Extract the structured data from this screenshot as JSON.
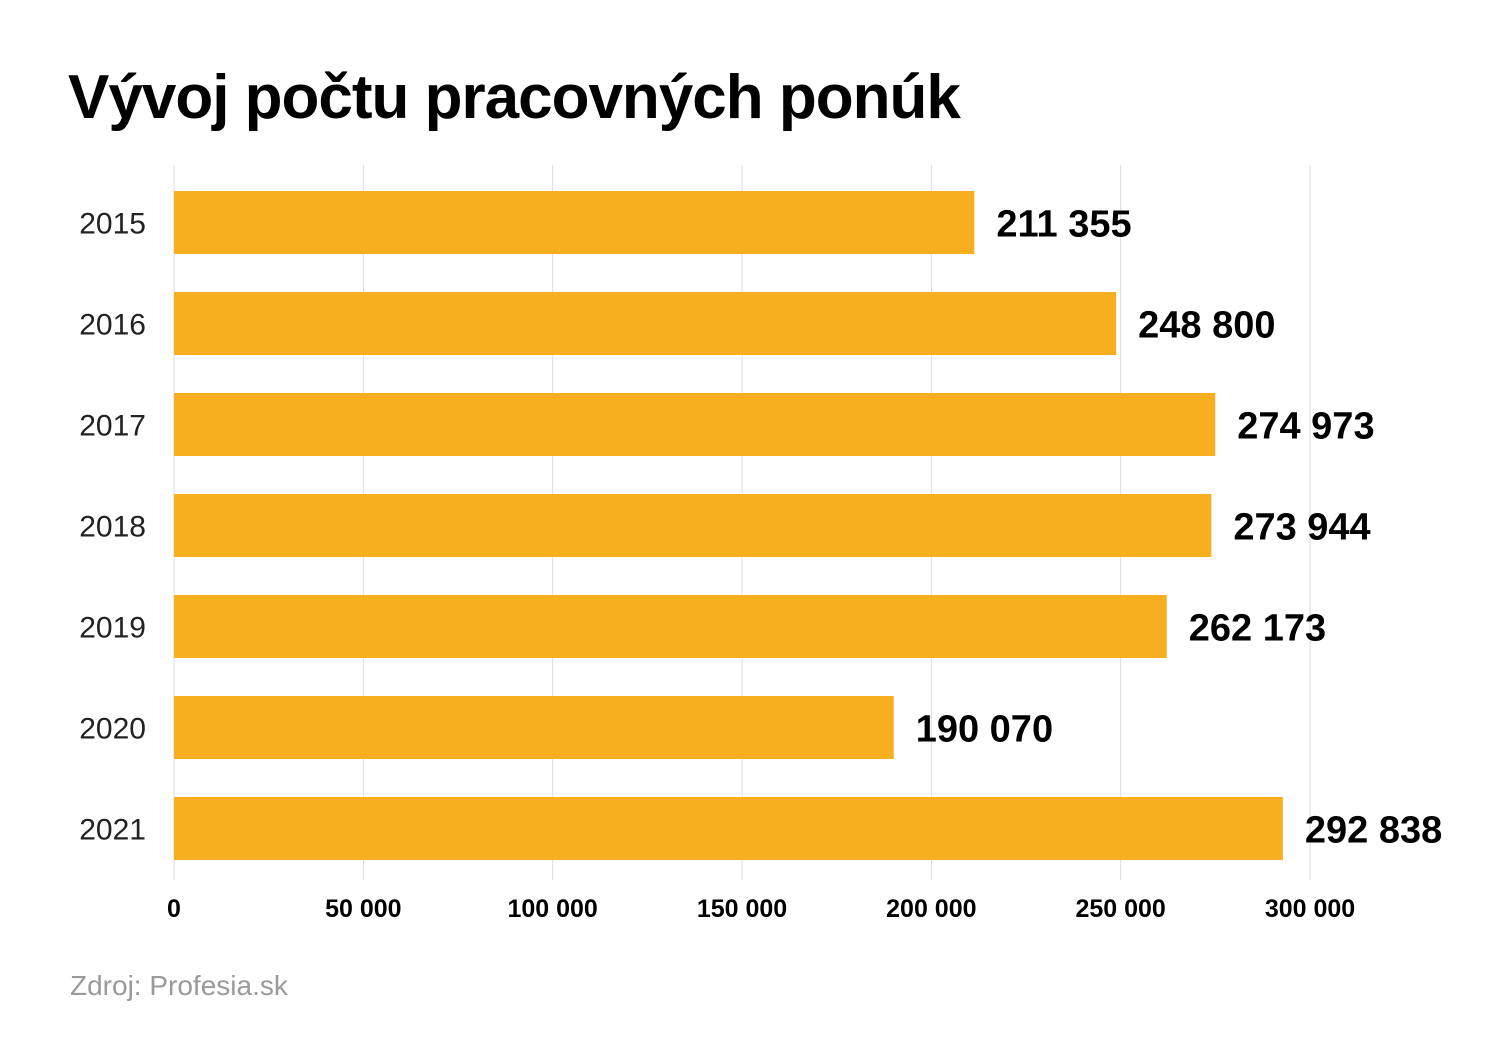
{
  "chart_data": {
    "type": "bar",
    "orientation": "horizontal",
    "title": "Vývoj počtu pracovných ponúk",
    "categories": [
      "2015",
      "2016",
      "2017",
      "2018",
      "2019",
      "2020",
      "2021"
    ],
    "values": [
      211355,
      248800,
      274973,
      273944,
      262173,
      190070,
      292838
    ],
    "value_labels": [
      "211 355",
      "248 800",
      "274 973",
      "273 944",
      "262 173",
      "190 070",
      "292 838"
    ],
    "xticks": [
      0,
      50000,
      100000,
      150000,
      200000,
      250000,
      300000
    ],
    "xtick_labels": [
      "0",
      "50 000",
      "100 000",
      "150 000",
      "200 000",
      "250 000",
      "300 000"
    ],
    "xlim": [
      0,
      300000
    ],
    "xlabel": "",
    "ylabel": "",
    "grid": true,
    "bar_color": "#F7AE1F",
    "grid_color": "#dddddd"
  },
  "footer": {
    "source": "Zdroj: Profesia.sk"
  }
}
